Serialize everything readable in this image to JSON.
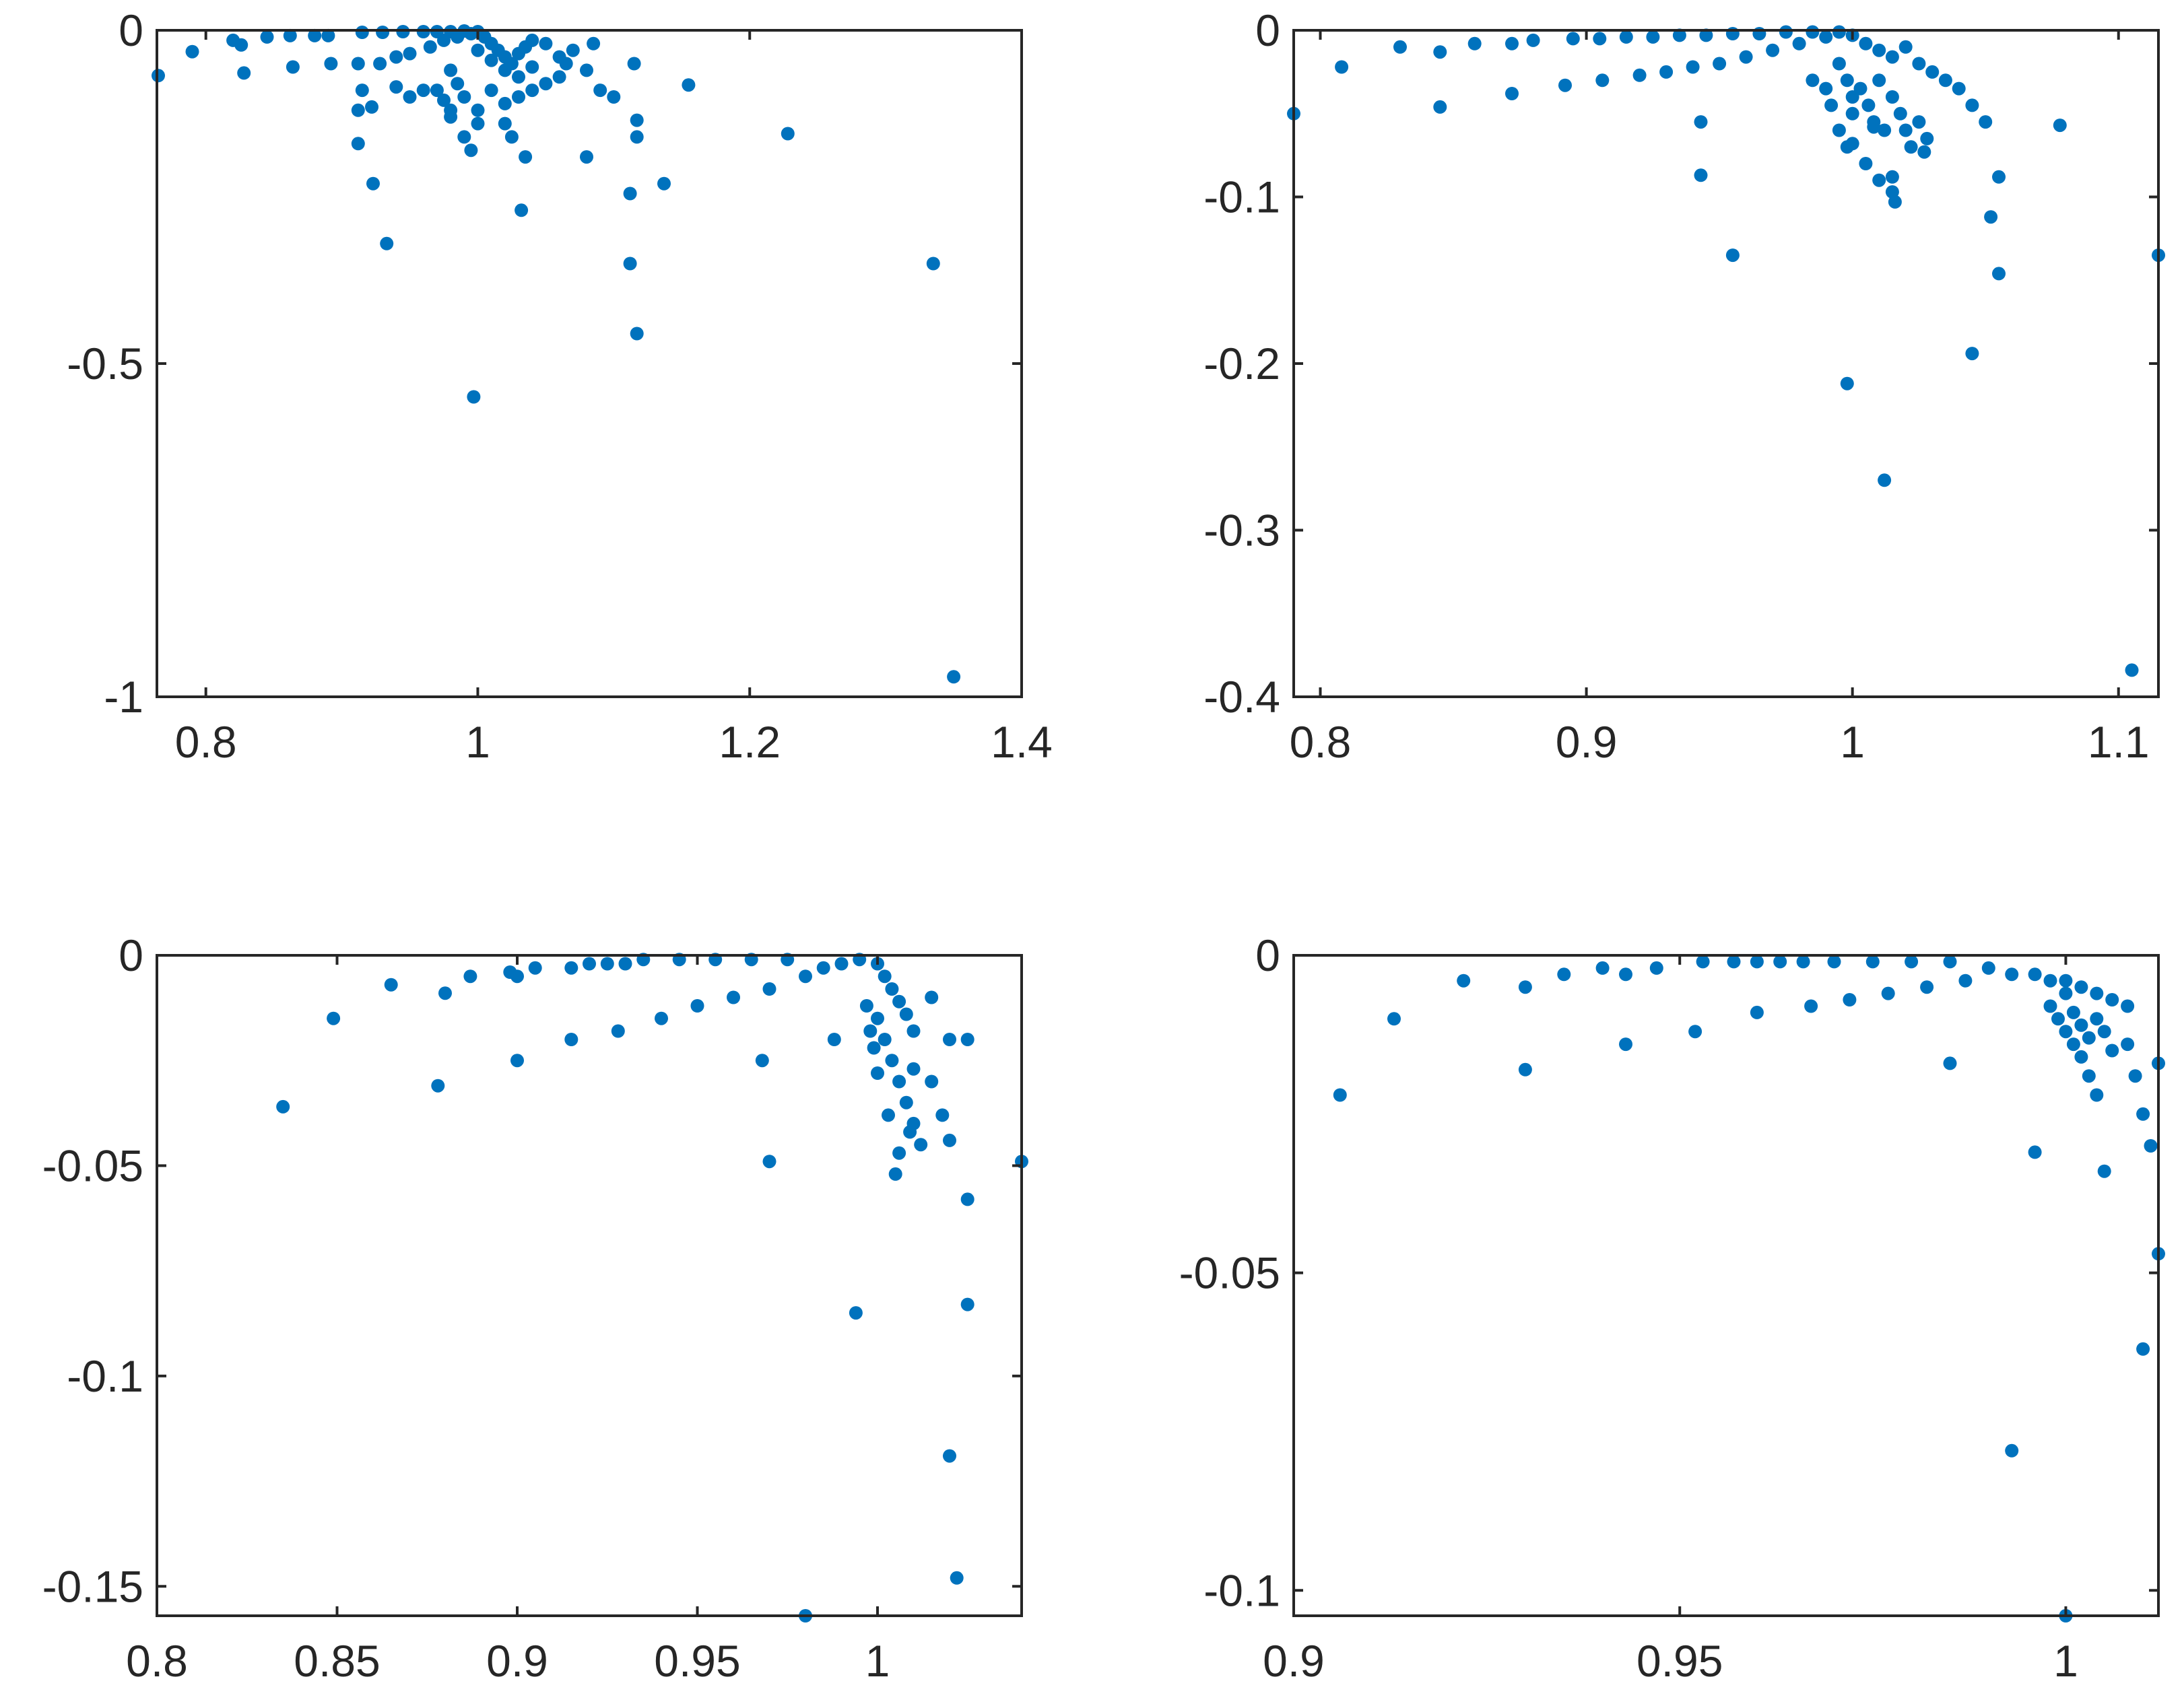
{
  "chart_data": [
    {
      "type": "scatter",
      "title": "",
      "xlabel": "",
      "ylabel": "",
      "xlim": [
        0.764,
        1.4
      ],
      "ylim": [
        -1.0,
        0.0
      ],
      "xticks": [
        0.8,
        1.0,
        1.2,
        1.4
      ],
      "xtick_labels": [
        "0.8",
        "1",
        "1.2",
        "1.4"
      ],
      "yticks": [
        -1.0,
        -0.5,
        0.0
      ],
      "ytick_labels": [
        "-1",
        "-0.5",
        "0"
      ],
      "marker_color": "#0072bd",
      "grid": false,
      "points": [
        [
          0.765,
          -0.068
        ],
        [
          0.79,
          -0.032
        ],
        [
          0.82,
          -0.015
        ],
        [
          0.826,
          -0.022
        ],
        [
          0.828,
          -0.064
        ],
        [
          0.845,
          -0.01
        ],
        [
          0.862,
          -0.008
        ],
        [
          0.864,
          -0.055
        ],
        [
          0.88,
          -0.008
        ],
        [
          0.89,
          -0.008
        ],
        [
          0.892,
          -0.05
        ],
        [
          0.912,
          -0.05
        ],
        [
          0.915,
          -0.003
        ],
        [
          0.928,
          -0.05
        ],
        [
          0.93,
          -0.003
        ],
        [
          0.94,
          -0.04
        ],
        [
          0.945,
          -0.002
        ],
        [
          0.95,
          -0.035
        ],
        [
          0.96,
          -0.002
        ],
        [
          0.965,
          -0.025
        ],
        [
          0.97,
          -0.002
        ],
        [
          0.975,
          -0.015
        ],
        [
          0.98,
          -0.002
        ],
        [
          0.985,
          -0.01
        ],
        [
          0.99,
          -0.001
        ],
        [
          0.995,
          -0.005
        ],
        [
          1.0,
          -0.002
        ],
        [
          1.005,
          -0.01
        ],
        [
          1.01,
          -0.02
        ],
        [
          1.015,
          -0.03
        ],
        [
          1.02,
          -0.04
        ],
        [
          1.025,
          -0.05
        ],
        [
          1.03,
          -0.035
        ],
        [
          1.035,
          -0.025
        ],
        [
          1.04,
          -0.015
        ],
        [
          1.0,
          -0.03
        ],
        [
          1.01,
          -0.045
        ],
        [
          1.02,
          -0.06
        ],
        [
          1.03,
          -0.07
        ],
        [
          1.04,
          -0.055
        ],
        [
          0.98,
          -0.06
        ],
        [
          0.985,
          -0.08
        ],
        [
          0.99,
          -0.1
        ],
        [
          1.0,
          -0.12
        ],
        [
          1.01,
          -0.09
        ],
        [
          1.02,
          -0.11
        ],
        [
          1.03,
          -0.1
        ],
        [
          1.04,
          -0.09
        ],
        [
          1.05,
          -0.08
        ],
        [
          1.06,
          -0.07
        ],
        [
          0.98,
          -0.13
        ],
        [
          1.0,
          -0.14
        ],
        [
          1.02,
          -0.14
        ],
        [
          1.025,
          -0.16
        ],
        [
          1.05,
          -0.02
        ],
        [
          1.06,
          -0.04
        ],
        [
          1.065,
          -0.05
        ],
        [
          1.07,
          -0.03
        ],
        [
          1.08,
          -0.06
        ],
        [
          1.085,
          -0.02
        ],
        [
          1.09,
          -0.09
        ],
        [
          1.1,
          -0.1
        ],
        [
          1.115,
          -0.05
        ],
        [
          1.117,
          -0.135
        ],
        [
          1.117,
          -0.16
        ],
        [
          1.155,
          -0.082
        ],
        [
          0.912,
          -0.12
        ],
        [
          0.912,
          -0.17
        ],
        [
          0.915,
          -0.09
        ],
        [
          0.922,
          -0.115
        ],
        [
          0.94,
          -0.085
        ],
        [
          0.95,
          -0.1
        ],
        [
          0.96,
          -0.09
        ],
        [
          0.97,
          -0.09
        ],
        [
          0.975,
          -0.105
        ],
        [
          0.98,
          -0.12
        ],
        [
          0.99,
          -0.16
        ],
        [
          0.995,
          -0.18
        ],
        [
          1.035,
          -0.19
        ],
        [
          1.08,
          -0.19
        ],
        [
          0.923,
          -0.23
        ],
        [
          1.032,
          -0.27
        ],
        [
          1.137,
          -0.23
        ],
        [
          1.112,
          -0.245
        ],
        [
          1.228,
          -0.155
        ],
        [
          0.933,
          -0.32
        ],
        [
          1.112,
          -0.35
        ],
        [
          1.335,
          -0.35
        ],
        [
          1.117,
          -0.455
        ],
        [
          0.997,
          -0.55
        ],
        [
          1.35,
          -0.97
        ]
      ]
    },
    {
      "type": "scatter",
      "title": "",
      "xlabel": "",
      "ylabel": "",
      "xlim": [
        0.79,
        1.115
      ],
      "ylim": [
        -0.4,
        0.0
      ],
      "xticks": [
        0.8,
        0.9,
        1.0,
        1.1
      ],
      "xtick_labels": [
        "0.8",
        "0.9",
        "1",
        "1.1"
      ],
      "yticks": [
        -0.4,
        -0.3,
        -0.2,
        -0.1,
        0.0
      ],
      "ytick_labels": [
        "-0.4",
        "-0.3",
        "-0.2",
        "-0.1",
        "0"
      ],
      "marker_color": "#0072bd",
      "grid": false,
      "points": [
        [
          0.79,
          -0.05
        ],
        [
          0.808,
          -0.022
        ],
        [
          0.83,
          -0.01
        ],
        [
          0.845,
          -0.013
        ],
        [
          0.845,
          -0.046
        ],
        [
          0.858,
          -0.008
        ],
        [
          0.872,
          -0.008
        ],
        [
          0.872,
          -0.038
        ],
        [
          0.88,
          -0.006
        ],
        [
          0.892,
          -0.033
        ],
        [
          0.895,
          -0.005
        ],
        [
          0.905,
          -0.005
        ],
        [
          0.906,
          -0.03
        ],
        [
          0.915,
          -0.004
        ],
        [
          0.92,
          -0.027
        ],
        [
          0.925,
          -0.004
        ],
        [
          0.93,
          -0.025
        ],
        [
          0.935,
          -0.003
        ],
        [
          0.94,
          -0.022
        ],
        [
          0.945,
          -0.003
        ],
        [
          0.95,
          -0.02
        ],
        [
          0.955,
          -0.002
        ],
        [
          0.96,
          -0.016
        ],
        [
          0.965,
          -0.002
        ],
        [
          0.97,
          -0.012
        ],
        [
          0.975,
          -0.001
        ],
        [
          0.98,
          -0.008
        ],
        [
          0.985,
          -0.001
        ],
        [
          0.99,
          -0.004
        ],
        [
          0.995,
          -0.001
        ],
        [
          1.0,
          -0.003
        ],
        [
          1.005,
          -0.008
        ],
        [
          1.01,
          -0.012
        ],
        [
          1.015,
          -0.016
        ],
        [
          1.02,
          -0.01
        ],
        [
          1.025,
          -0.02
        ],
        [
          1.03,
          -0.025
        ],
        [
          1.035,
          -0.03
        ],
        [
          1.04,
          -0.035
        ],
        [
          1.045,
          -0.045
        ],
        [
          0.995,
          -0.02
        ],
        [
          0.998,
          -0.03
        ],
        [
          1.0,
          -0.04
        ],
        [
          1.0,
          -0.05
        ],
        [
          1.003,
          -0.035
        ],
        [
          1.006,
          -0.045
        ],
        [
          1.008,
          -0.055
        ],
        [
          1.01,
          -0.03
        ],
        [
          1.012,
          -0.06
        ],
        [
          1.015,
          -0.04
        ],
        [
          1.018,
          -0.05
        ],
        [
          1.02,
          -0.06
        ],
        [
          1.022,
          -0.07
        ],
        [
          1.025,
          -0.055
        ],
        [
          1.028,
          -0.065
        ],
        [
          0.985,
          -0.03
        ],
        [
          0.99,
          -0.035
        ],
        [
          0.992,
          -0.045
        ],
        [
          0.995,
          -0.06
        ],
        [
          0.998,
          -0.07
        ],
        [
          1.0,
          -0.068
        ],
        [
          1.005,
          -0.08
        ],
        [
          1.008,
          -0.058
        ],
        [
          1.01,
          -0.09
        ],
        [
          1.015,
          -0.088
        ],
        [
          1.015,
          -0.097
        ],
        [
          1.016,
          -0.103
        ],
        [
          1.027,
          -0.073
        ],
        [
          1.05,
          -0.055
        ],
        [
          1.055,
          -0.088
        ],
        [
          1.052,
          -0.112
        ],
        [
          1.055,
          -0.146
        ],
        [
          0.943,
          -0.055
        ],
        [
          0.943,
          -0.087
        ],
        [
          0.955,
          -0.135
        ],
        [
          0.998,
          -0.212
        ],
        [
          1.012,
          -0.27
        ],
        [
          1.045,
          -0.194
        ],
        [
          1.078,
          -0.057
        ],
        [
          1.115,
          -0.135
        ],
        [
          1.105,
          -0.384
        ]
      ]
    },
    {
      "type": "scatter",
      "title": "",
      "xlabel": "",
      "ylabel": "",
      "xlim": [
        0.8,
        1.04
      ],
      "ylim": [
        -0.157,
        0.0
      ],
      "xticks": [
        0.8,
        0.85,
        0.9,
        0.95,
        1.0
      ],
      "xtick_labels": [
        "0.8",
        "0.85",
        "0.9",
        "0.95",
        "1"
      ],
      "yticks": [
        -0.15,
        -0.1,
        -0.05,
        0.0
      ],
      "ytick_labels": [
        "-0.15",
        "-0.1",
        "-0.05",
        "0"
      ],
      "marker_color": "#0072bd",
      "grid": false,
      "points": [
        [
          0.835,
          -0.036
        ],
        [
          0.849,
          -0.015
        ],
        [
          0.865,
          -0.007
        ],
        [
          0.878,
          -0.031
        ],
        [
          0.88,
          -0.009
        ],
        [
          0.887,
          -0.005
        ],
        [
          0.898,
          -0.004
        ],
        [
          0.9,
          -0.005
        ],
        [
          0.9,
          -0.025
        ],
        [
          0.905,
          -0.003
        ],
        [
          0.915,
          -0.003
        ],
        [
          0.915,
          -0.02
        ],
        [
          0.92,
          -0.002
        ],
        [
          0.925,
          -0.002
        ],
        [
          0.928,
          -0.018
        ],
        [
          0.93,
          -0.002
        ],
        [
          0.935,
          -0.001
        ],
        [
          0.94,
          -0.015
        ],
        [
          0.945,
          -0.001
        ],
        [
          0.95,
          -0.012
        ],
        [
          0.955,
          -0.001
        ],
        [
          0.96,
          -0.01
        ],
        [
          0.965,
          -0.001
        ],
        [
          0.97,
          -0.008
        ],
        [
          0.975,
          -0.001
        ],
        [
          0.98,
          -0.005
        ],
        [
          0.985,
          -0.003
        ],
        [
          0.99,
          -0.002
        ],
        [
          0.995,
          -0.001
        ],
        [
          1.0,
          -0.002
        ],
        [
          1.002,
          -0.005
        ],
        [
          1.004,
          -0.008
        ],
        [
          1.006,
          -0.011
        ],
        [
          1.008,
          -0.014
        ],
        [
          1.01,
          -0.018
        ],
        [
          1.015,
          -0.01
        ],
        [
          1.02,
          -0.02
        ],
        [
          1.025,
          -0.02
        ],
        [
          1.0,
          -0.015
        ],
        [
          1.002,
          -0.02
        ],
        [
          1.004,
          -0.025
        ],
        [
          1.006,
          -0.03
        ],
        [
          1.008,
          -0.035
        ],
        [
          1.01,
          -0.04
        ],
        [
          1.012,
          -0.045
        ],
        [
          0.997,
          -0.012
        ],
        [
          0.998,
          -0.018
        ],
        [
          0.999,
          -0.022
        ],
        [
          1.0,
          -0.028
        ],
        [
          1.003,
          -0.038
        ],
        [
          1.006,
          -0.047
        ],
        [
          1.009,
          -0.042
        ],
        [
          1.01,
          -0.027
        ],
        [
          1.015,
          -0.03
        ],
        [
          1.018,
          -0.038
        ],
        [
          1.02,
          -0.044
        ],
        [
          1.025,
          -0.058
        ],
        [
          1.005,
          -0.052
        ],
        [
          0.968,
          -0.025
        ],
        [
          0.97,
          -0.049
        ],
        [
          0.988,
          -0.02
        ],
        [
          0.994,
          -0.085
        ],
        [
          1.025,
          -0.083
        ],
        [
          1.04,
          -0.049
        ],
        [
          1.02,
          -0.119
        ],
        [
          1.022,
          -0.148
        ],
        [
          0.98,
          -0.157
        ]
      ]
    },
    {
      "type": "scatter",
      "title": "",
      "xlabel": "",
      "ylabel": "",
      "xlim": [
        0.9,
        1.012
      ],
      "ylim": [
        -0.104,
        0.0
      ],
      "xticks": [
        0.9,
        0.95,
        1.0
      ],
      "xtick_labels": [
        "0.9",
        "0.95",
        "1"
      ],
      "yticks": [
        -0.1,
        -0.05,
        0.0
      ],
      "ytick_labels": [
        "-0.1",
        "-0.05",
        "0"
      ],
      "marker_color": "#0072bd",
      "grid": false,
      "points": [
        [
          0.906,
          -0.022
        ],
        [
          0.913,
          -0.01
        ],
        [
          0.922,
          -0.004
        ],
        [
          0.93,
          -0.005
        ],
        [
          0.93,
          -0.018
        ],
        [
          0.935,
          -0.003
        ],
        [
          0.94,
          -0.002
        ],
        [
          0.943,
          -0.003
        ],
        [
          0.943,
          -0.014
        ],
        [
          0.947,
          -0.002
        ],
        [
          0.952,
          -0.012
        ],
        [
          0.953,
          -0.001
        ],
        [
          0.957,
          -0.001
        ],
        [
          0.96,
          -0.001
        ],
        [
          0.96,
          -0.009
        ],
        [
          0.963,
          -0.001
        ],
        [
          0.966,
          -0.001
        ],
        [
          0.967,
          -0.008
        ],
        [
          0.97,
          -0.001
        ],
        [
          0.972,
          -0.007
        ],
        [
          0.975,
          -0.001
        ],
        [
          0.977,
          -0.006
        ],
        [
          0.98,
          -0.001
        ],
        [
          0.982,
          -0.005
        ],
        [
          0.985,
          -0.001
        ],
        [
          0.987,
          -0.004
        ],
        [
          0.99,
          -0.002
        ],
        [
          0.993,
          -0.003
        ],
        [
          0.996,
          -0.003
        ],
        [
          0.998,
          -0.004
        ],
        [
          1.0,
          -0.004
        ],
        [
          1.002,
          -0.005
        ],
        [
          1.004,
          -0.006
        ],
        [
          1.006,
          -0.007
        ],
        [
          1.008,
          -0.008
        ],
        [
          0.998,
          -0.008
        ],
        [
          0.999,
          -0.01
        ],
        [
          1.0,
          -0.012
        ],
        [
          1.001,
          -0.014
        ],
        [
          1.002,
          -0.016
        ],
        [
          1.0,
          -0.006
        ],
        [
          1.001,
          -0.009
        ],
        [
          1.002,
          -0.011
        ],
        [
          1.003,
          -0.013
        ],
        [
          1.004,
          -0.01
        ],
        [
          1.005,
          -0.012
        ],
        [
          1.006,
          -0.015
        ],
        [
          1.003,
          -0.019
        ],
        [
          1.004,
          -0.022
        ],
        [
          1.008,
          -0.014
        ],
        [
          1.009,
          -0.019
        ],
        [
          1.01,
          -0.025
        ],
        [
          1.012,
          -0.017
        ],
        [
          1.011,
          -0.03
        ],
        [
          1.012,
          -0.047
        ],
        [
          1.01,
          -0.062
        ],
        [
          0.985,
          -0.017
        ],
        [
          0.996,
          -0.031
        ],
        [
          1.005,
          -0.034
        ],
        [
          0.993,
          -0.078
        ],
        [
          1.0,
          -0.104
        ]
      ]
    }
  ]
}
